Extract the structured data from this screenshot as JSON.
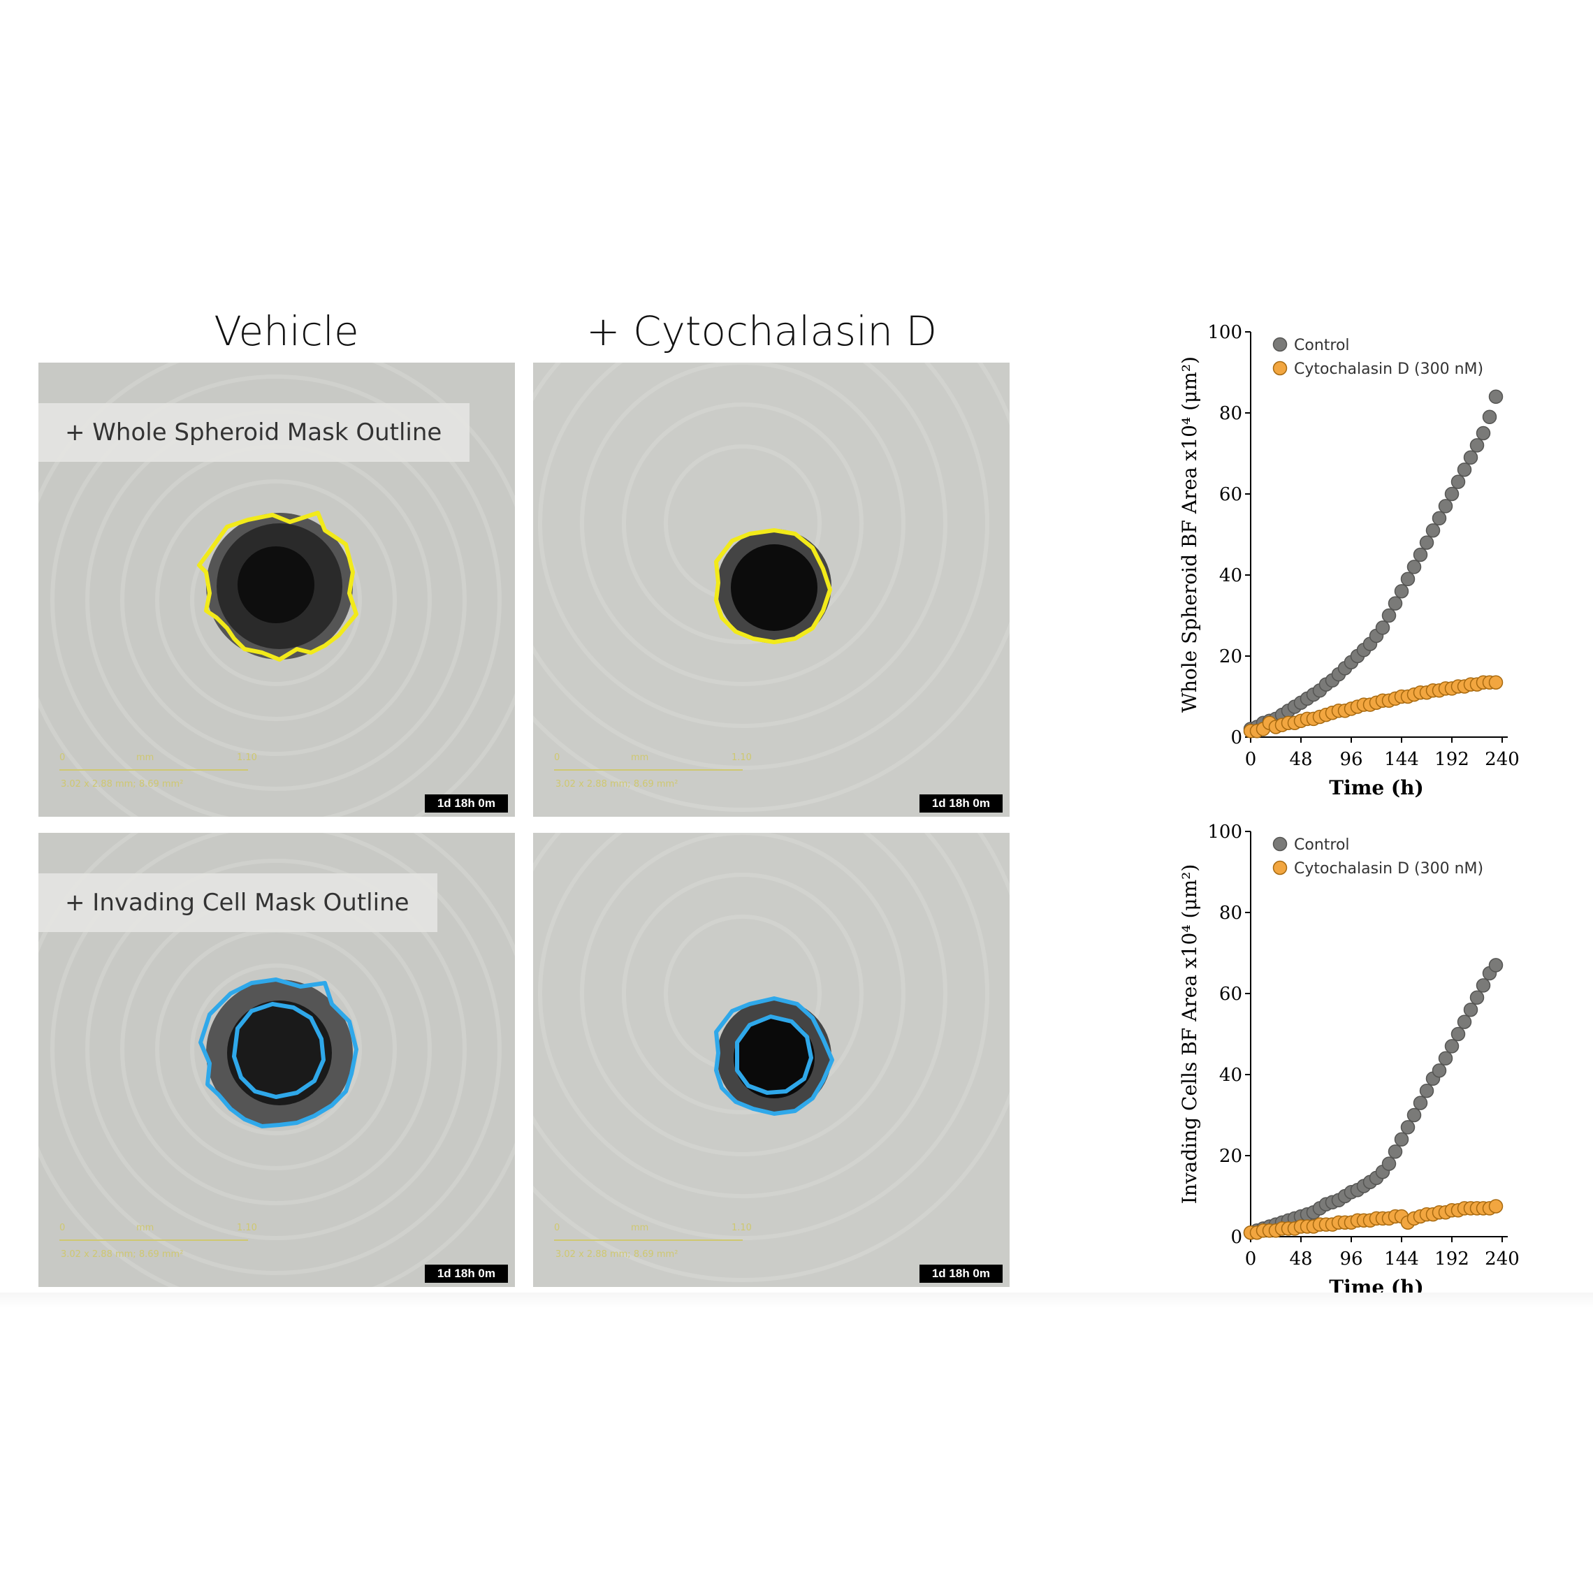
{
  "columns": {
    "left": "Vehicle",
    "right": "+ Cytochalasin D"
  },
  "panels": [
    {
      "id": "p1",
      "label": "+ Whole Spheroid Mask Outline",
      "timestamp": "1d 18h 0m"
    },
    {
      "id": "p2",
      "label": "",
      "timestamp": "1d 18h 0m"
    },
    {
      "id": "p3",
      "label": "+ Invading Cell Mask Outline",
      "timestamp": "1d 18h 0m"
    },
    {
      "id": "p4",
      "label": "",
      "timestamp": "1d 18h 0m"
    }
  ],
  "scalebar": {
    "start": "0",
    "unit": "mm",
    "end": "1.10",
    "info": "3.02 x 2.88 mm; 8.69 mm²"
  },
  "colors": {
    "control": "#7a7a78",
    "cytochalasin": "#f2a640",
    "whole_mask": "#f2ea1a",
    "invading_mask": "#2fa8ea"
  },
  "chart_data": [
    {
      "type": "scatter",
      "title": "",
      "xlabel": "Time (h)",
      "ylabel": "Whole Spheroid BF Area x10⁴ (μm²)",
      "xlim": [
        0,
        240
      ],
      "ylim": [
        0,
        100
      ],
      "xticks": [
        "0",
        "48",
        "96",
        "144",
        "192",
        "240"
      ],
      "yticks": [
        "0",
        "20",
        "40",
        "60",
        "80",
        "100"
      ],
      "legend_position": "top-left",
      "series": [
        {
          "name": "Control",
          "x": [
            0,
            6,
            12,
            18,
            24,
            30,
            36,
            42,
            48,
            54,
            60,
            66,
            72,
            78,
            84,
            90,
            96,
            102,
            108,
            114,
            120,
            126,
            132,
            138,
            144,
            150,
            156,
            162,
            168,
            174,
            180,
            186,
            192,
            198,
            204,
            210,
            216,
            222,
            228,
            234
          ],
          "y": [
            2,
            2.5,
            3.5,
            4,
            4.5,
            5.5,
            6.5,
            7.5,
            8.5,
            9.5,
            10.5,
            11.5,
            13,
            14,
            15.5,
            17,
            18.5,
            20,
            21.5,
            23,
            25,
            27,
            30,
            33,
            36,
            39,
            42,
            45,
            48,
            51,
            54,
            57,
            60,
            63,
            66,
            69,
            72,
            75,
            79,
            84
          ]
        },
        {
          "name": "Cytochalasin D (300 nM)",
          "x": [
            0,
            6,
            12,
            18,
            24,
            30,
            36,
            42,
            48,
            54,
            60,
            66,
            72,
            78,
            84,
            90,
            96,
            102,
            108,
            114,
            120,
            126,
            132,
            138,
            144,
            150,
            156,
            162,
            168,
            174,
            180,
            186,
            192,
            198,
            204,
            210,
            216,
            222,
            228,
            234
          ],
          "y": [
            1.5,
            1.5,
            2,
            3.5,
            2.5,
            3,
            3.5,
            3.5,
            4,
            4.5,
            4.5,
            5,
            5.5,
            6,
            6.5,
            6.5,
            7,
            7.5,
            8,
            8,
            8.5,
            9,
            9,
            9.5,
            10,
            10,
            10.5,
            11,
            11,
            11.5,
            11.5,
            12,
            12,
            12.5,
            12.5,
            13,
            13,
            13.5,
            13.5,
            13.5
          ]
        }
      ]
    },
    {
      "type": "scatter",
      "title": "",
      "xlabel": "Time (h)",
      "ylabel": "Invading Cells BF Area x10⁴ (μm²)",
      "xlim": [
        0,
        240
      ],
      "ylim": [
        0,
        100
      ],
      "xticks": [
        "0",
        "48",
        "96",
        "144",
        "192",
        "240"
      ],
      "yticks": [
        "0",
        "20",
        "40",
        "60",
        "80",
        "100"
      ],
      "legend_position": "top-left",
      "series": [
        {
          "name": "Control",
          "x": [
            0,
            6,
            12,
            18,
            24,
            30,
            36,
            42,
            48,
            54,
            60,
            66,
            72,
            78,
            84,
            90,
            96,
            102,
            108,
            114,
            120,
            126,
            132,
            138,
            144,
            150,
            156,
            162,
            168,
            174,
            180,
            186,
            192,
            198,
            204,
            210,
            216,
            222,
            228,
            234
          ],
          "y": [
            1,
            1.5,
            2,
            2.5,
            3,
            3.5,
            4,
            4.5,
            5,
            5.5,
            6,
            7,
            8,
            8.5,
            9,
            10,
            11,
            11.5,
            12.5,
            13.5,
            14.5,
            16,
            18,
            21,
            24,
            27,
            30,
            33,
            36,
            39,
            41,
            44,
            47,
            50,
            53,
            56,
            59,
            62,
            65,
            67
          ]
        },
        {
          "name": "Cytochalasin D (300 nM)",
          "x": [
            0,
            6,
            12,
            18,
            24,
            30,
            36,
            42,
            48,
            54,
            60,
            66,
            72,
            78,
            84,
            90,
            96,
            102,
            108,
            114,
            120,
            126,
            132,
            138,
            144,
            150,
            156,
            162,
            168,
            174,
            180,
            186,
            192,
            198,
            204,
            210,
            216,
            222,
            228,
            234
          ],
          "y": [
            1,
            1,
            1.5,
            1.5,
            1.5,
            2,
            2,
            2,
            2.5,
            2.5,
            2.5,
            3,
            3,
            3,
            3.5,
            3.5,
            3.5,
            4,
            4,
            4,
            4.5,
            4.5,
            4.5,
            5,
            5,
            3.5,
            4.5,
            5,
            5.5,
            5.5,
            6,
            6,
            6.5,
            6.5,
            7,
            7,
            7,
            7,
            7,
            7.5
          ]
        }
      ]
    }
  ]
}
